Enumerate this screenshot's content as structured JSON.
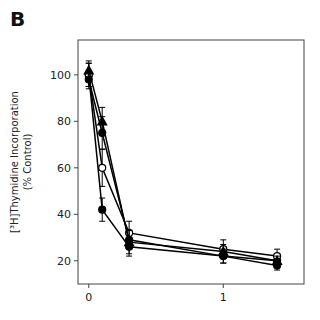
{
  "chart_data": {
    "type": "line",
    "title": "B",
    "ylabel": "[³H]Thymidine Incorporation\n(% Control)",
    "x": [
      0,
      0.1,
      0.3,
      1.0,
      1.4
    ],
    "xlim": [
      -0.08,
      1.6
    ],
    "xticks": [
      0,
      1
    ],
    "ylim": [
      10,
      115
    ],
    "yticks": [
      20,
      40,
      60,
      80,
      100
    ],
    "grid": false,
    "series": [
      {
        "values": [
          100,
          42,
          26,
          22,
          20
        ],
        "errors": [
          5,
          5,
          4,
          3,
          2
        ],
        "color": "#000000",
        "marker": "circle"
      },
      {
        "values": [
          100,
          60,
          32,
          25,
          22
        ],
        "errors": [
          5,
          8,
          5,
          4,
          3
        ],
        "color": "#000000",
        "marker": "open-circle"
      },
      {
        "values": [
          102,
          80,
          28,
          24,
          20
        ],
        "errors": [
          4,
          6,
          5,
          3,
          2
        ],
        "color": "#000000",
        "marker": "triangle"
      },
      {
        "values": [
          98,
          75,
          29,
          22,
          18
        ],
        "errors": [
          4,
          7,
          4,
          3,
          2
        ],
        "color": "#000000",
        "marker": "circle"
      }
    ]
  }
}
